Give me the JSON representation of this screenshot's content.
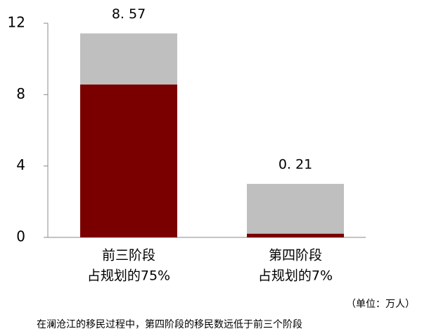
{
  "chart_data": {
    "type": "stacked-bar",
    "categories": [
      [
        "前三阶段",
        "占规划的75%"
      ],
      [
        "第四阶段",
        "占规划的7%"
      ]
    ],
    "series": [
      {
        "color": "#7a0000",
        "values": [
          8.57,
          0.21
        ],
        "value_labels": [
          "8. 57",
          "0. 21"
        ]
      },
      {
        "color": "#bfbfbf",
        "values": [
          2.86,
          2.79
        ]
      }
    ],
    "ylim": [
      0,
      12
    ],
    "yticks": [
      0,
      4,
      8,
      12
    ],
    "unit_note": "（单位：万人）",
    "caption": "在澜沧江的移民过程中，第四阶段的移民数远低于前三个阶段"
  }
}
